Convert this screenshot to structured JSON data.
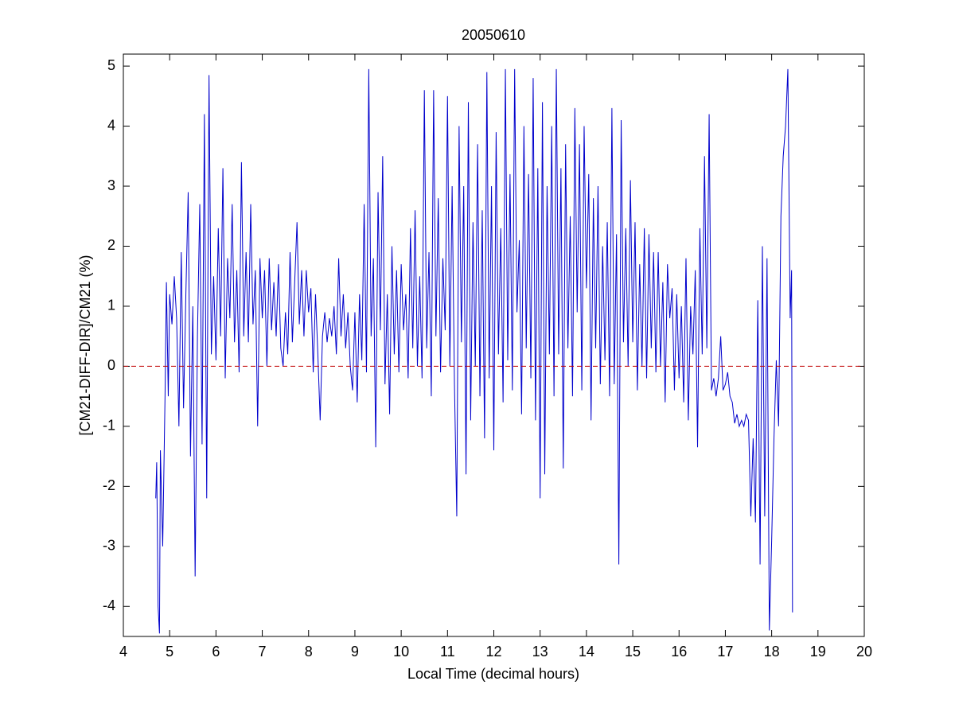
{
  "chart_data": {
    "type": "line",
    "title": "20050610",
    "x_label": "Local Time (decimal hours)",
    "y_label": "[CM21-DIFF-DIR]/CM21 (%)",
    "xlim": [
      4,
      20
    ],
    "xticks": [
      4,
      5,
      6,
      7,
      8,
      9,
      10,
      11,
      12,
      13,
      14,
      15,
      16,
      17,
      18,
      19,
      20
    ],
    "ylim": [
      -4.5,
      5.2
    ],
    "yticks": [
      -4,
      -3,
      -2,
      -1,
      0,
      1,
      2,
      3,
      4,
      5
    ],
    "reference_line": {
      "value": 0,
      "color": "#c00000"
    },
    "series": [
      {
        "color": "#0000cc",
        "x": [
          4.7,
          4.72,
          4.75,
          4.78,
          4.8,
          4.85,
          4.9,
          4.93,
          4.97,
          5.0,
          5.05,
          5.1,
          5.15,
          5.2,
          5.25,
          5.3,
          5.35,
          5.4,
          5.45,
          5.5,
          5.55,
          5.6,
          5.65,
          5.7,
          5.75,
          5.8,
          5.85,
          5.9,
          5.95,
          6.0,
          6.05,
          6.1,
          6.15,
          6.2,
          6.25,
          6.3,
          6.35,
          6.4,
          6.45,
          6.5,
          6.55,
          6.6,
          6.65,
          6.7,
          6.75,
          6.8,
          6.85,
          6.9,
          6.95,
          7.0,
          7.05,
          7.1,
          7.15,
          7.2,
          7.25,
          7.3,
          7.35,
          7.4,
          7.45,
          7.5,
          7.55,
          7.6,
          7.65,
          7.7,
          7.75,
          7.8,
          7.85,
          7.9,
          7.95,
          8.0,
          8.05,
          8.1,
          8.15,
          8.2,
          8.25,
          8.3,
          8.35,
          8.4,
          8.45,
          8.5,
          8.55,
          8.6,
          8.65,
          8.7,
          8.75,
          8.8,
          8.85,
          8.9,
          8.95,
          9.0,
          9.05,
          9.1,
          9.15,
          9.2,
          9.25,
          9.3,
          9.35,
          9.4,
          9.45,
          9.5,
          9.55,
          9.6,
          9.65,
          9.7,
          9.75,
          9.8,
          9.85,
          9.9,
          9.95,
          10.0,
          10.05,
          10.1,
          10.15,
          10.2,
          10.25,
          10.3,
          10.35,
          10.4,
          10.45,
          10.5,
          10.55,
          10.6,
          10.65,
          10.7,
          10.75,
          10.8,
          10.85,
          10.9,
          10.95,
          11.0,
          11.05,
          11.1,
          11.15,
          11.2,
          11.25,
          11.3,
          11.35,
          11.4,
          11.45,
          11.5,
          11.55,
          11.6,
          11.65,
          11.7,
          11.75,
          11.8,
          11.85,
          11.9,
          11.95,
          12.0,
          12.05,
          12.1,
          12.15,
          12.2,
          12.25,
          12.3,
          12.35,
          12.4,
          12.45,
          12.5,
          12.55,
          12.6,
          12.65,
          12.7,
          12.75,
          12.8,
          12.85,
          12.9,
          12.95,
          13.0,
          13.05,
          13.1,
          13.15,
          13.2,
          13.25,
          13.3,
          13.35,
          13.4,
          13.45,
          13.5,
          13.55,
          13.6,
          13.65,
          13.7,
          13.75,
          13.8,
          13.85,
          13.9,
          13.95,
          14.0,
          14.05,
          14.1,
          14.15,
          14.2,
          14.25,
          14.3,
          14.35,
          14.4,
          14.45,
          14.5,
          14.55,
          14.6,
          14.65,
          14.7,
          14.75,
          14.8,
          14.85,
          14.9,
          14.95,
          15.0,
          15.05,
          15.1,
          15.15,
          15.2,
          15.25,
          15.3,
          15.35,
          15.4,
          15.45,
          15.5,
          15.55,
          15.6,
          15.65,
          15.7,
          15.75,
          15.8,
          15.85,
          15.9,
          15.95,
          16.0,
          16.05,
          16.1,
          16.15,
          16.2,
          16.25,
          16.3,
          16.35,
          16.4,
          16.45,
          16.5,
          16.55,
          16.6,
          16.65,
          16.7,
          16.75,
          16.8,
          16.85,
          16.9,
          16.95,
          17.0,
          17.05,
          17.1,
          17.15,
          17.2,
          17.25,
          17.3,
          17.35,
          17.4,
          17.45,
          17.5,
          17.55,
          17.6,
          17.65,
          17.7,
          17.75,
          17.8,
          17.85,
          17.9,
          17.95,
          18.0,
          18.05,
          18.1,
          18.15,
          18.2,
          18.25,
          18.3,
          18.35,
          18.4,
          18.43,
          18.45
        ],
        "values": [
          -2.2,
          -1.6,
          -4.0,
          -4.45,
          -1.4,
          -3.0,
          -0.5,
          1.4,
          -0.5,
          1.2,
          0.7,
          1.5,
          0.8,
          -1.0,
          1.9,
          -0.7,
          1.2,
          2.9,
          -1.5,
          1.0,
          -3.5,
          0.5,
          2.7,
          -1.3,
          4.2,
          -2.2,
          4.85,
          0.2,
          1.5,
          0.1,
          2.3,
          0.5,
          3.3,
          -0.2,
          1.8,
          0.8,
          2.7,
          0.4,
          1.6,
          -0.1,
          3.4,
          0.5,
          1.9,
          0.4,
          2.7,
          0.7,
          1.6,
          -1.0,
          1.8,
          0.8,
          1.6,
          0.0,
          1.8,
          0.6,
          1.4,
          0.5,
          1.7,
          0.3,
          0.0,
          0.9,
          0.2,
          1.9,
          0.4,
          1.4,
          2.4,
          0.7,
          1.6,
          0.5,
          1.6,
          0.9,
          1.3,
          -0.1,
          1.2,
          0.2,
          -0.9,
          0.5,
          0.9,
          0.4,
          0.8,
          0.5,
          1.0,
          0.2,
          1.8,
          0.5,
          1.2,
          0.3,
          0.9,
          0.0,
          -0.4,
          0.9,
          -0.6,
          1.2,
          0.1,
          2.7,
          -0.1,
          4.95,
          0.5,
          1.8,
          -1.35,
          2.9,
          0.6,
          3.5,
          -0.3,
          1.2,
          -0.8,
          2.0,
          0.2,
          1.6,
          -0.1,
          1.7,
          0.6,
          1.2,
          -0.2,
          2.3,
          0.3,
          2.6,
          0.0,
          1.5,
          -0.2,
          4.6,
          0.3,
          1.9,
          -0.5,
          4.6,
          0.5,
          2.8,
          -0.1,
          1.8,
          0.6,
          4.5,
          0.0,
          3.0,
          -0.3,
          -2.5,
          4.0,
          0.4,
          3.0,
          -1.8,
          4.4,
          -0.9,
          2.4,
          0.0,
          3.7,
          -0.5,
          2.6,
          -1.2,
          4.9,
          -0.2,
          3.0,
          -1.4,
          3.9,
          0.2,
          2.3,
          -0.6,
          4.95,
          0.1,
          3.2,
          -0.4,
          4.95,
          0.9,
          2.1,
          -0.8,
          4.0,
          0.3,
          3.2,
          -0.2,
          4.8,
          -0.9,
          3.3,
          -2.2,
          4.4,
          -1.8,
          3.0,
          0.2,
          4.0,
          -0.5,
          4.95,
          0.2,
          3.3,
          -1.7,
          3.7,
          0.3,
          2.5,
          -0.5,
          4.3,
          0.9,
          3.7,
          -0.4,
          4.0,
          1.3,
          3.2,
          -0.9,
          2.8,
          0.3,
          3.0,
          -0.3,
          2.0,
          0.1,
          2.4,
          -0.5,
          4.3,
          -0.3,
          2.2,
          -3.3,
          4.1,
          0.4,
          2.3,
          0.0,
          3.1,
          0.4,
          2.4,
          -0.4,
          1.7,
          0.0,
          2.3,
          -0.2,
          2.2,
          0.3,
          1.9,
          -0.1,
          1.9,
          0.0,
          1.4,
          -0.6,
          1.7,
          0.8,
          1.3,
          -0.4,
          1.2,
          -0.2,
          1.0,
          -0.6,
          1.8,
          -0.9,
          1.0,
          0.2,
          1.6,
          -1.35,
          2.3,
          0.2,
          3.5,
          0.3,
          4.2,
          -0.4,
          -0.2,
          -0.5,
          -0.2,
          0.5,
          -0.4,
          -0.3,
          -0.1,
          -0.5,
          -0.6,
          -0.95,
          -0.8,
          -1.0,
          -0.9,
          -1.0,
          -0.8,
          -0.9,
          -2.5,
          -1.2,
          -2.6,
          1.1,
          -3.3,
          2.0,
          -2.5,
          1.8,
          -4.4,
          -2.9,
          -1.2,
          0.1,
          -1.0,
          2.5,
          3.5,
          4.0,
          4.95,
          0.8,
          1.6,
          -4.1
        ]
      }
    ]
  }
}
